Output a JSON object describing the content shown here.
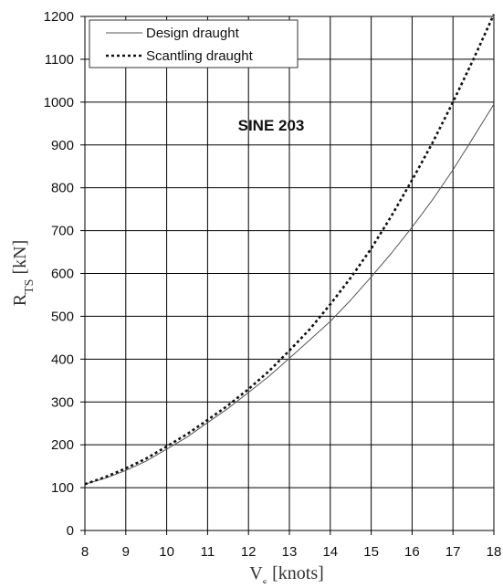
{
  "chart_data": {
    "type": "line",
    "annotation": "SINE 203",
    "xlabel": {
      "main": "V",
      "sub": "s",
      "rest": " [knots]"
    },
    "ylabel": {
      "main": "R",
      "sub": "TS",
      "rest": " [kN]"
    },
    "xlim": [
      8,
      18
    ],
    "ylim": [
      0,
      1200
    ],
    "xticks": [
      "8",
      "9",
      "10",
      "11",
      "12",
      "13",
      "14",
      "15",
      "16",
      "17",
      "18"
    ],
    "yticks": [
      "0",
      "100",
      "200",
      "300",
      "400",
      "500",
      "600",
      "700",
      "800",
      "900",
      "1000",
      "1100",
      "1200"
    ],
    "grid": true,
    "legend_position": "top-left",
    "series": [
      {
        "name": "Design draught",
        "style": "solid",
        "color": "#555555",
        "x": [
          8,
          8.5,
          9,
          9.5,
          10,
          10.5,
          11,
          11.5,
          12,
          12.5,
          13,
          13.5,
          14,
          14.5,
          15,
          15.5,
          16,
          16.5,
          17,
          17.5,
          18
        ],
        "y": [
          108,
          122,
          140,
          162,
          190,
          218,
          252,
          285,
          322,
          360,
          402,
          445,
          488,
          538,
          592,
          648,
          708,
          772,
          842,
          918,
          995
        ]
      },
      {
        "name": "Scantling draught",
        "style": "dotted",
        "color": "#111111",
        "x": [
          8,
          8.5,
          9,
          9.5,
          10,
          10.5,
          11,
          11.5,
          12,
          12.5,
          13,
          13.5,
          14,
          14.5,
          15,
          15.5,
          16,
          16.5,
          17,
          17.5,
          18
        ],
        "y": [
          108,
          125,
          145,
          168,
          196,
          225,
          258,
          292,
          330,
          372,
          420,
          470,
          528,
          590,
          658,
          735,
          818,
          905,
          1000,
          1100,
          1205
        ]
      }
    ]
  }
}
